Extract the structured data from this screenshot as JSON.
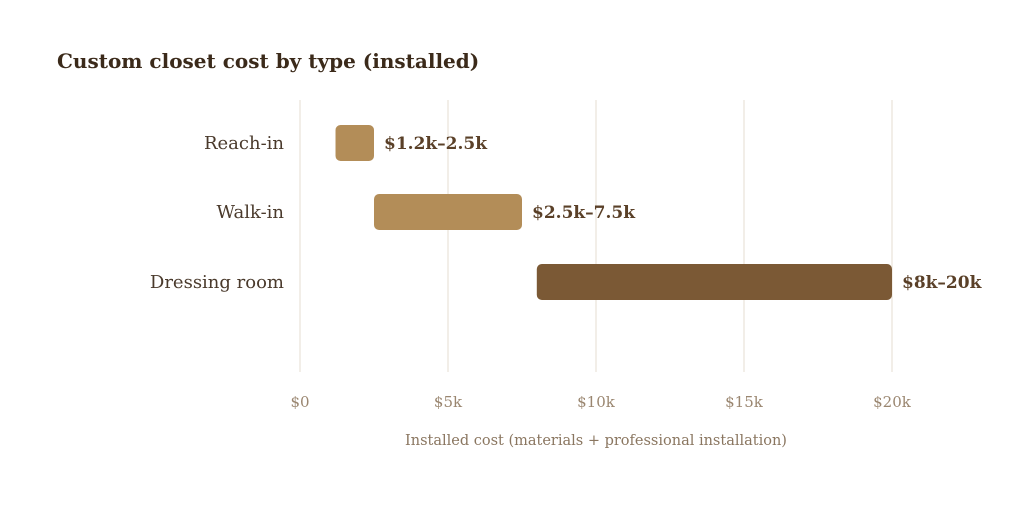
{
  "chart_data": {
    "type": "bar",
    "orientation": "horizontal",
    "style": "floating-range",
    "title": "Custom closet cost by type (installed)",
    "xlabel": "Installed cost (materials + professional installation)",
    "ylabel": "",
    "xlim": [
      0,
      20000
    ],
    "x_ticks": [
      0,
      5000,
      10000,
      15000,
      20000
    ],
    "x_tick_labels": [
      "$0",
      "$5k",
      "$10k",
      "$15k",
      "$20k"
    ],
    "grid": "vertical",
    "legend": "none",
    "categories": [
      "Reach-in",
      "Walk-in",
      "Dressing room"
    ],
    "ranges": [
      {
        "category": "Reach-in",
        "low": 1200,
        "high": 2500,
        "label": "$1.2k–2.5k",
        "color": "#b38d58"
      },
      {
        "category": "Walk-in",
        "low": 2500,
        "high": 7500,
        "label": "$2.5k–7.5k",
        "color": "#b38d58"
      },
      {
        "category": "Dressing room",
        "low": 8000,
        "high": 20000,
        "label": "$8k–20k",
        "color": "#7b5935"
      }
    ],
    "colors": {
      "title": "#3b2a1a",
      "category_label": "#4a3a2c",
      "value_label": "#5a4028",
      "tick_label": "#9a8670",
      "axis_label": "#8a7660",
      "grid": "#e8e2d8"
    }
  }
}
